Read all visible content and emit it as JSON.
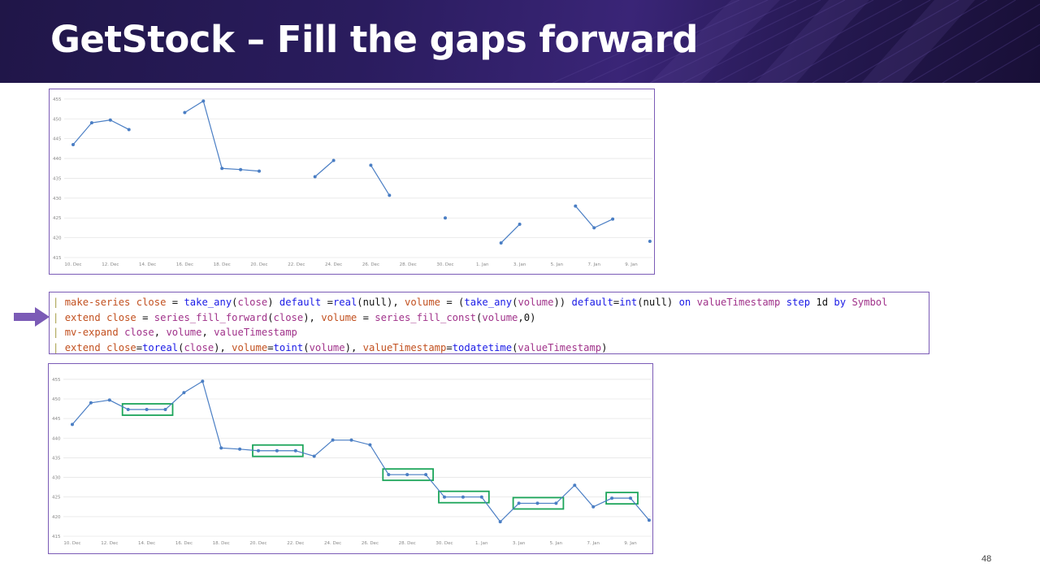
{
  "slide": {
    "title": "GetStock – Fill the gaps forward",
    "page_number": "48"
  },
  "code": {
    "lines": [
      [
        {
          "t": "| ",
          "c": "pipe"
        },
        {
          "t": "make-series",
          "c": "kw"
        },
        {
          "t": " ",
          "c": "plain"
        },
        {
          "t": "close",
          "c": "kw"
        },
        {
          "t": " = ",
          "c": "plain"
        },
        {
          "t": "take_any",
          "c": "fn"
        },
        {
          "t": "(",
          "c": "plain"
        },
        {
          "t": "close",
          "c": "id"
        },
        {
          "t": ") ",
          "c": "plain"
        },
        {
          "t": "default",
          "c": "fn"
        },
        {
          "t": " =",
          "c": "plain"
        },
        {
          "t": "real",
          "c": "fn"
        },
        {
          "t": "(null), ",
          "c": "plain"
        },
        {
          "t": "volume",
          "c": "kw"
        },
        {
          "t": " = (",
          "c": "plain"
        },
        {
          "t": "take_any",
          "c": "fn"
        },
        {
          "t": "(",
          "c": "plain"
        },
        {
          "t": "volume",
          "c": "id"
        },
        {
          "t": ")) ",
          "c": "plain"
        },
        {
          "t": "default",
          "c": "fn"
        },
        {
          "t": "=",
          "c": "plain"
        },
        {
          "t": "int",
          "c": "fn"
        },
        {
          "t": "(null) ",
          "c": "plain"
        },
        {
          "t": "on",
          "c": "fn"
        },
        {
          "t": " ",
          "c": "plain"
        },
        {
          "t": "valueTimestamp",
          "c": "id"
        },
        {
          "t": " ",
          "c": "plain"
        },
        {
          "t": "step",
          "c": "fn"
        },
        {
          "t": " 1d ",
          "c": "plain"
        },
        {
          "t": "by",
          "c": "fn"
        },
        {
          "t": " ",
          "c": "plain"
        },
        {
          "t": "Symbol",
          "c": "id"
        }
      ],
      [
        {
          "t": "| ",
          "c": "pipe"
        },
        {
          "t": "extend",
          "c": "kw"
        },
        {
          "t": " ",
          "c": "plain"
        },
        {
          "t": "close",
          "c": "kw"
        },
        {
          "t": " = ",
          "c": "plain"
        },
        {
          "t": "series_fill_forward",
          "c": "id"
        },
        {
          "t": "(",
          "c": "plain"
        },
        {
          "t": "close",
          "c": "id"
        },
        {
          "t": "), ",
          "c": "plain"
        },
        {
          "t": "volume",
          "c": "kw"
        },
        {
          "t": " = ",
          "c": "plain"
        },
        {
          "t": "series_fill_const",
          "c": "id"
        },
        {
          "t": "(",
          "c": "plain"
        },
        {
          "t": "volume",
          "c": "id"
        },
        {
          "t": ",0)",
          "c": "plain"
        }
      ],
      [
        {
          "t": "| ",
          "c": "pipe"
        },
        {
          "t": "mv-expand",
          "c": "kw"
        },
        {
          "t": " ",
          "c": "plain"
        },
        {
          "t": "close",
          "c": "id"
        },
        {
          "t": ", ",
          "c": "plain"
        },
        {
          "t": "volume",
          "c": "id"
        },
        {
          "t": ", ",
          "c": "plain"
        },
        {
          "t": "valueTimestamp",
          "c": "id"
        }
      ],
      [
        {
          "t": "| ",
          "c": "pipe"
        },
        {
          "t": "extend",
          "c": "kw"
        },
        {
          "t": " ",
          "c": "plain"
        },
        {
          "t": "close",
          "c": "kw"
        },
        {
          "t": "=",
          "c": "plain"
        },
        {
          "t": "toreal",
          "c": "fn"
        },
        {
          "t": "(",
          "c": "plain"
        },
        {
          "t": "close",
          "c": "id"
        },
        {
          "t": "), ",
          "c": "plain"
        },
        {
          "t": "volume",
          "c": "kw"
        },
        {
          "t": "=",
          "c": "plain"
        },
        {
          "t": "toint",
          "c": "fn"
        },
        {
          "t": "(",
          "c": "plain"
        },
        {
          "t": "volume",
          "c": "id"
        },
        {
          "t": "), ",
          "c": "plain"
        },
        {
          "t": "valueTimestamp",
          "c": "kw"
        },
        {
          "t": "=",
          "c": "plain"
        },
        {
          "t": "todatetime",
          "c": "fn"
        },
        {
          "t": "(",
          "c": "plain"
        },
        {
          "t": "valueTimestamp",
          "c": "id"
        },
        {
          "t": ")",
          "c": "plain"
        }
      ]
    ]
  },
  "colors": {
    "series": "#4a7ec4",
    "highlight_box": "#1ca55a",
    "frame": "#7b5bb6",
    "arrow": "#7b5bb6"
  },
  "chart_data": [
    {
      "type": "line",
      "title": "",
      "x_ticks": [
        "10. Dec",
        "12. Dec",
        "14. Dec",
        "16. Dec",
        "18. Dec",
        "20. Dec",
        "22. Dec",
        "24. Dec",
        "26. Dec",
        "28. Dec",
        "30. Dec",
        "1. Jan",
        "3. Jan",
        "5. Jan",
        "7. Jan",
        "9. Jan"
      ],
      "y_ticks": [
        455,
        450,
        445,
        440,
        435,
        430,
        425,
        420,
        415
      ],
      "ylim": [
        415,
        456
      ],
      "grid": true,
      "series": [
        {
          "values": [
            443.5,
            449,
            449.7,
            447.3,
            null,
            null,
            451.6,
            454.5,
            437.5,
            437.2,
            436.8,
            null,
            null,
            435.4,
            439.5,
            null,
            438.3,
            430.7,
            null,
            null,
            425,
            null,
            null,
            418.7,
            423.4,
            null,
            null,
            428,
            422.5,
            424.7,
            null,
            419.1
          ]
        }
      ]
    },
    {
      "type": "line",
      "title": "",
      "x_ticks": [
        "10. Dec",
        "12. Dec",
        "14. Dec",
        "16. Dec",
        "18. Dec",
        "20. Dec",
        "22. Dec",
        "24. Dec",
        "26. Dec",
        "28. Dec",
        "30. Dec",
        "1. Jan",
        "3. Jan",
        "5. Jan",
        "7. Jan",
        "9. Jan"
      ],
      "y_ticks": [
        455,
        450,
        445,
        440,
        435,
        430,
        425,
        420,
        415
      ],
      "ylim": [
        415,
        456
      ],
      "grid": true,
      "series": [
        {
          "values": [
            443.5,
            449,
            449.7,
            447.3,
            447.3,
            447.3,
            451.6,
            454.5,
            437.5,
            437.2,
            436.8,
            436.8,
            436.8,
            435.4,
            439.5,
            439.5,
            438.3,
            430.7,
            430.7,
            430.7,
            425,
            425,
            425,
            418.7,
            423.4,
            423.4,
            423.4,
            428,
            422.5,
            424.7,
            424.7,
            419.1
          ]
        }
      ],
      "highlighted_gaps": [
        [
          3,
          5
        ],
        [
          10,
          12
        ],
        [
          17,
          19
        ],
        [
          20,
          22
        ],
        [
          24,
          26
        ],
        [
          29,
          30
        ]
      ]
    }
  ]
}
